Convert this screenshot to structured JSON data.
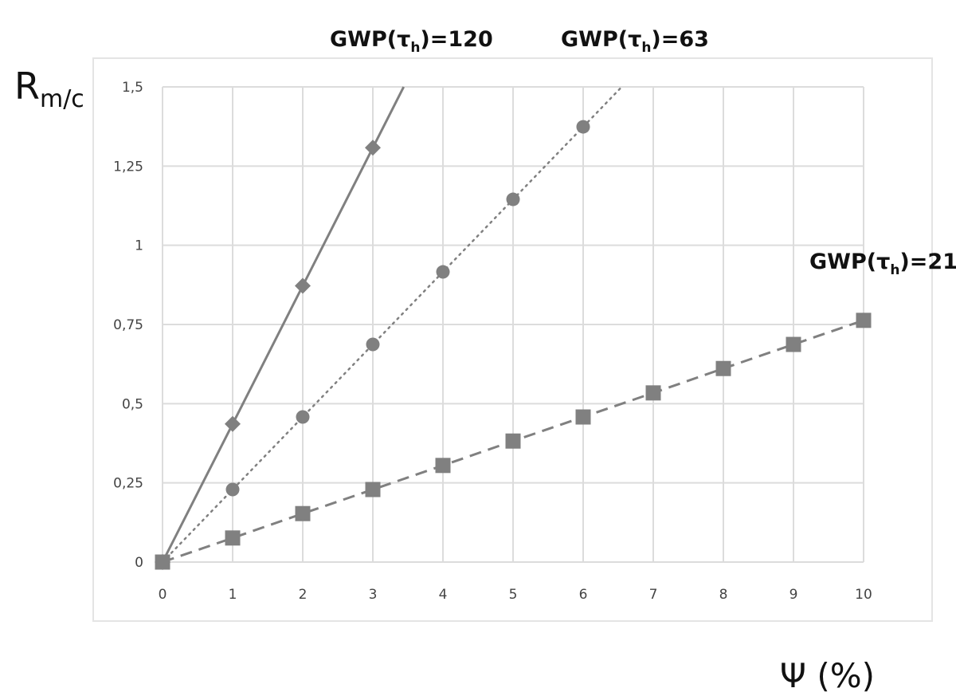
{
  "chart_data": {
    "type": "line",
    "ylabel_main": "R",
    "ylabel_sub": "m/c",
    "xlabel": "Ψ (%)",
    "xlim": [
      0,
      10
    ],
    "ylim": [
      0,
      1.5
    ],
    "x_ticks": [
      0,
      1,
      2,
      3,
      4,
      5,
      6,
      7,
      8,
      9,
      10
    ],
    "x_tick_labels": [
      "0",
      "1",
      "2",
      "3",
      "4",
      "5",
      "6",
      "7",
      "8",
      "9",
      "10"
    ],
    "y_ticks": [
      0,
      0.25,
      0.5,
      0.75,
      1,
      1.25,
      1.5
    ],
    "y_tick_labels": [
      "0",
      "0,25",
      "0,5",
      "0,75",
      "1",
      "1,25",
      "1,5"
    ],
    "grid": true,
    "series": [
      {
        "name": "GWP(τh)=120",
        "label_prefix": "GWP(τ",
        "label_sub": "h",
        "label_suffix": ")=120",
        "marker": "diamond",
        "line_style": "solid",
        "color": "#808080",
        "x": [
          0,
          1,
          2,
          3
        ],
        "y": [
          0,
          0.436,
          0.872,
          1.308
        ],
        "line_end": [
          3.44,
          1.5
        ]
      },
      {
        "name": "GWP(τh)=63",
        "label_prefix": "GWP(τ",
        "label_sub": "h",
        "label_suffix": ")=63",
        "marker": "circle",
        "line_style": "dotted",
        "color": "#808080",
        "x": [
          0,
          1,
          2,
          3,
          4,
          5,
          6
        ],
        "y": [
          0,
          0.229,
          0.458,
          0.687,
          0.916,
          1.145,
          1.374
        ],
        "line_end": [
          6.55,
          1.5
        ]
      },
      {
        "name": "GWP(τh)=21",
        "label_prefix": "GWP(τ",
        "label_sub": "h",
        "label_suffix": ")=21",
        "marker": "square",
        "line_style": "dashed",
        "color": "#808080",
        "x": [
          0,
          1,
          2,
          3,
          4,
          5,
          6,
          7,
          8,
          9,
          10
        ],
        "y": [
          0,
          0.076,
          0.153,
          0.229,
          0.305,
          0.382,
          0.458,
          0.534,
          0.611,
          0.687,
          0.763
        ],
        "line_end": [
          10,
          0.763
        ]
      }
    ],
    "colors": {
      "grid": "#dcdcdc",
      "frame": "#e4e4e4",
      "series": "#808080",
      "text": "#111111"
    }
  }
}
